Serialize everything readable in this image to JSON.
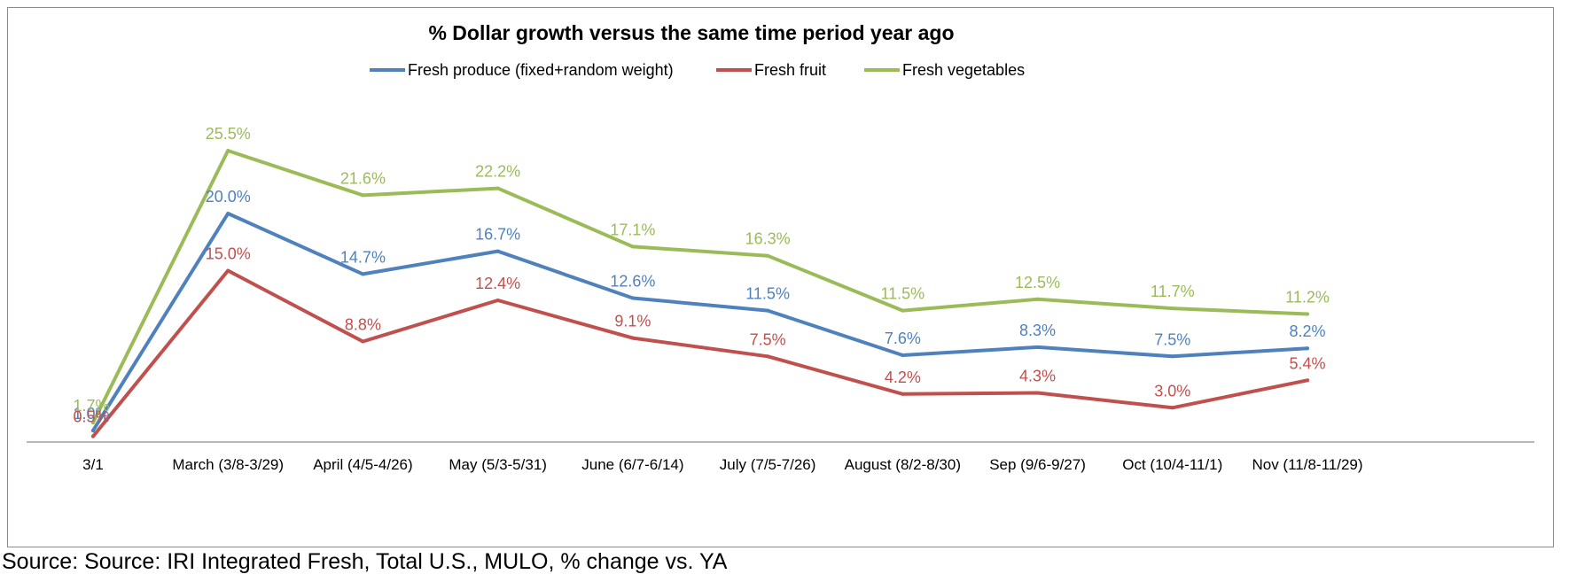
{
  "chart_data": {
    "type": "line",
    "title": "% Dollar growth versus the same time period year ago",
    "categories": [
      "3/1",
      "March (3/8-3/29)",
      "April (4/5-4/26)",
      "May (5/3-5/31)",
      "June (6/7-6/14)",
      "July (7/5-7/26)",
      "August (8/2-8/30)",
      "Sep (9/6-9/27)",
      "Oct (10/4-11/1)",
      "Nov (11/8-11/29)"
    ],
    "series": [
      {
        "name": "Fresh produce (fixed+random weight)",
        "color": "#4f81bd",
        "values": [
          1.0,
          20.0,
          14.7,
          16.7,
          12.6,
          11.5,
          7.6,
          8.3,
          7.5,
          8.2
        ],
        "labels": [
          "1.0%",
          "20.0%",
          "14.7%",
          "16.7%",
          "12.6%",
          "11.5%",
          "7.6%",
          "8.3%",
          "7.5%",
          "8.2%"
        ]
      },
      {
        "name": "Fresh fruit",
        "color": "#c0504d",
        "values": [
          0.5,
          15.0,
          8.8,
          12.4,
          9.1,
          7.5,
          4.2,
          4.3,
          3.0,
          5.4
        ],
        "labels": [
          "0.5%",
          "15.0%",
          "8.8%",
          "12.4%",
          "9.1%",
          "7.5%",
          "4.2%",
          "4.3%",
          "3.0%",
          "5.4%"
        ]
      },
      {
        "name": "Fresh vegetables",
        "color": "#9bbb59",
        "values": [
          1.7,
          25.5,
          21.6,
          22.2,
          17.1,
          16.3,
          11.5,
          12.5,
          11.7,
          11.2
        ],
        "labels": [
          "1.7%",
          "25.5%",
          "21.6%",
          "22.2%",
          "17.1%",
          "16.3%",
          "11.5%",
          "12.5%",
          "11.7%",
          "11.2%"
        ]
      }
    ],
    "ylim": [
      0,
      27
    ],
    "grid": false,
    "legend_position": "top-center",
    "xlabel": "",
    "ylabel": ""
  },
  "source": "Source: Source: IRI Integrated Fresh, Total U.S., MULO, % change vs. YA"
}
